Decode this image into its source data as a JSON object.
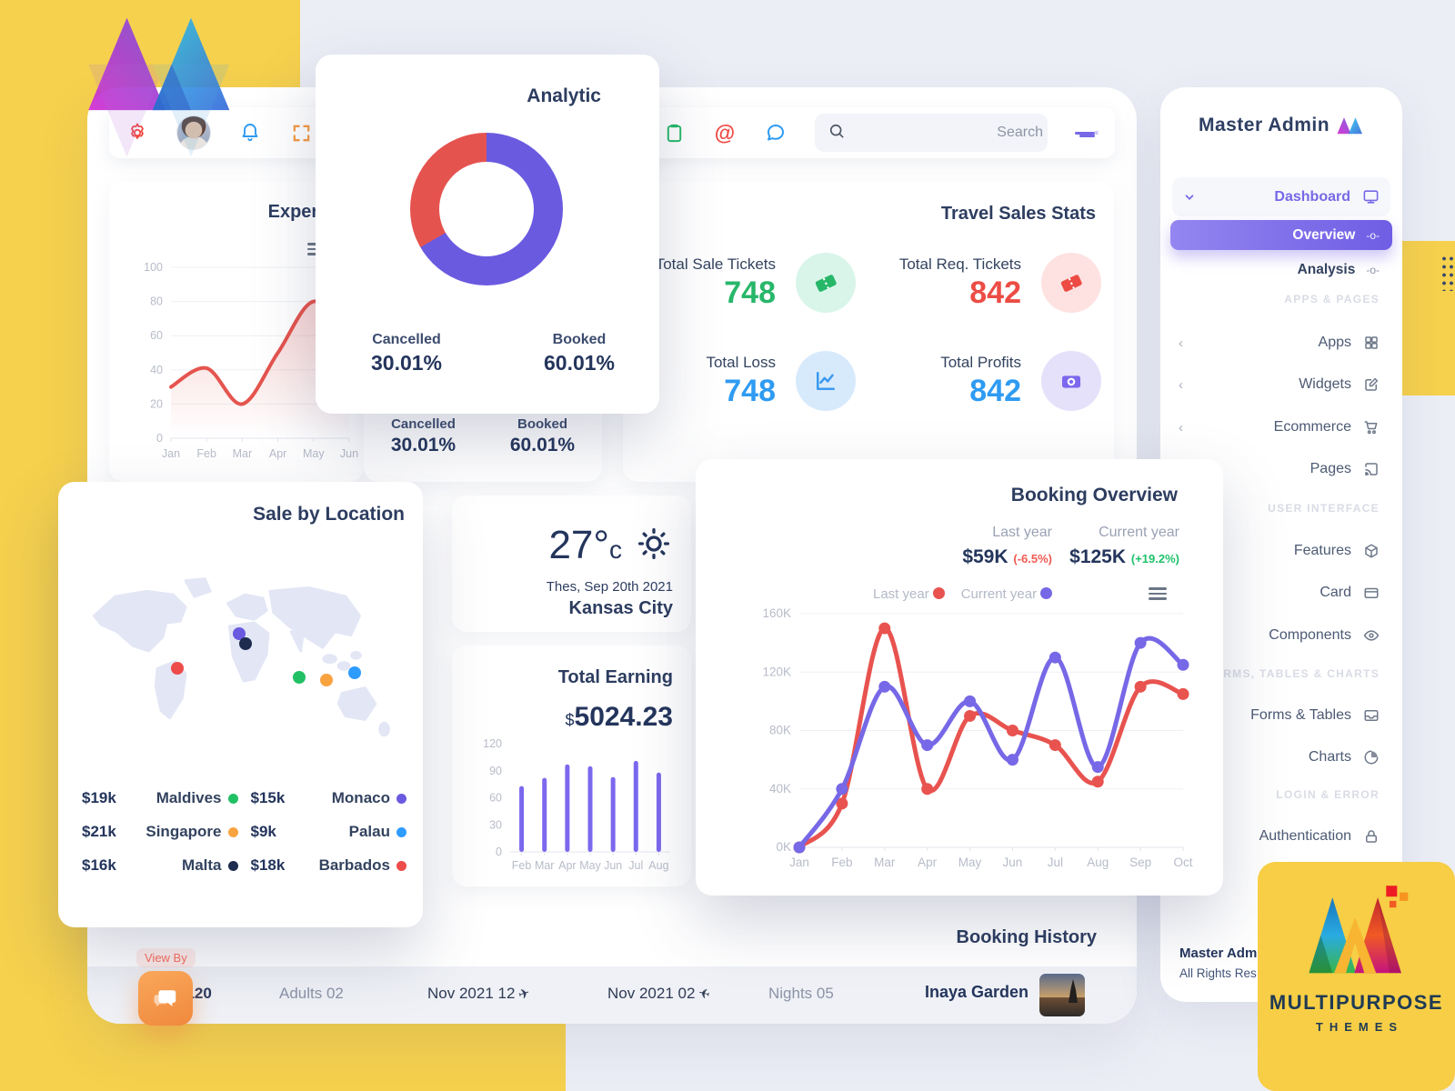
{
  "brand": {
    "name": "Master Admin"
  },
  "topbar": {
    "search_placeholder": "Search"
  },
  "analytic_card": {
    "title": "Analytic",
    "cancelled_label": "Cancelled",
    "cancelled_value": "30.01%",
    "booked_label": "Booked",
    "booked_value": "60.01%"
  },
  "expenses_card": {
    "title": "Expenses"
  },
  "travel_stats": {
    "title": "Travel Sales Stats",
    "items": [
      {
        "label": "Total Sale Tickets",
        "value": "748",
        "value_color": "#27b769",
        "badge_bg": "#d9f5ea",
        "icon": "ticket-icon",
        "icon_color": "#27b769"
      },
      {
        "label": "Total Req. Tickets",
        "value": "842",
        "value_color": "#ec4c44",
        "badge_bg": "#fde2e1",
        "icon": "ticket-icon",
        "icon_color": "#ec4c44"
      },
      {
        "label": "Total Loss",
        "value": "748",
        "value_color": "#2f9bf2",
        "badge_bg": "#d7eafc",
        "icon": "loss-chart-icon",
        "icon_color": "#3b99f0"
      },
      {
        "label": "Total Profits",
        "value": "842",
        "value_color": "#2f9bf2",
        "badge_bg": "#e5e1fa",
        "icon": "wallet-icon",
        "icon_color": "#7b68ee"
      }
    ]
  },
  "weather": {
    "temp": "27°",
    "unit": "c",
    "date": "Thes, Sep 20th 2021",
    "city": "Kansas City"
  },
  "earning": {
    "title": "Total Earning",
    "currency": "$",
    "amount": "5024.23"
  },
  "sale_by_location": {
    "title": "Sale by Location",
    "entries": [
      {
        "value": "$19k",
        "label": "Maldives",
        "color": "#22c065",
        "map_x": 68.6,
        "map_y": 56.6
      },
      {
        "value": "$15k",
        "label": "Monaco",
        "color": "#6a5ae0",
        "map_x": 49.7,
        "map_y": 34.6
      },
      {
        "value": "$21k",
        "label": "Singapore",
        "color": "#f8a340",
        "map_x": 77.4,
        "map_y": 57.6
      },
      {
        "value": "$9k",
        "label": "Palau",
        "color": "#2e9bff",
        "map_x": 86.3,
        "map_y": 54.1
      },
      {
        "value": "$16k",
        "label": "Malta",
        "color": "#1d2b4f",
        "map_x": 51.7,
        "map_y": 39.5
      },
      {
        "value": "$18k",
        "label": "Barbados",
        "color": "#ee4b4b",
        "map_x": 30.3,
        "map_y": 51.7
      }
    ]
  },
  "booking_overview": {
    "title": "Booking Overview",
    "last_year_label": "Last year",
    "last_year_value": "$59K",
    "last_year_delta": "(-6.5%)",
    "delta_down_color": "#f05a52",
    "current_year_label": "Current year",
    "current_year_value": "$125K",
    "current_year_delta": "(+19.2%)",
    "delta_up_color": "#1fc26b",
    "legend": [
      {
        "label": "Last year",
        "color": "#e8534f"
      },
      {
        "label": "Current year",
        "color": "#7668e6"
      }
    ]
  },
  "booking_history": {
    "title": "Booking History",
    "row": {
      "price": "$120",
      "adults": "Adults 02",
      "departure_date": "Nov 2021 12",
      "arrival_date": "Nov 2021 02",
      "nights": "Nights 05",
      "hotel": "Inaya Garden"
    }
  },
  "sidebar": {
    "brand": "Master Admin",
    "dashboard_label": "Dashboard",
    "overview_label": "Overview",
    "analysis_label": "Analysis",
    "radio_glyph": "-o-",
    "sections": {
      "apps_pages": "APPS & PAGES",
      "user_interface": "USER INTERFACE",
      "forms_tables_charts": "FORMS, TABLES & CHARTS",
      "login_error": "LOGIN & ERROR"
    },
    "items": {
      "apps": "Apps",
      "widgets": "Widgets",
      "ecommerce": "Ecommerce",
      "pages": "Pages",
      "features": "Features",
      "card": "Card",
      "components": "Components",
      "forms_tables": "Forms & Tables",
      "charts": "Charts",
      "authentication": "Authentication"
    },
    "footer_title": "Master Admin",
    "footer_sub": "All Rights Res"
  },
  "view_by": "View By",
  "logo_card": {
    "line1": "MULTIPURPOSE",
    "line2": "THEMES"
  },
  "chart_data": [
    {
      "id": "expenses",
      "type": "line",
      "title": "Expenses",
      "x": [
        "Jan",
        "Feb",
        "Mar",
        "Apr",
        "May",
        "Jun"
      ],
      "series": [
        {
          "name": "Expenses",
          "color": "#e5544e",
          "values": [
            30,
            41,
            20,
            50,
            80,
            60
          ]
        }
      ],
      "ylim": [
        0,
        100
      ],
      "yticks": [
        0,
        20,
        40,
        60,
        80,
        100
      ],
      "grid": true,
      "area": true,
      "legend_position": "none"
    },
    {
      "id": "analytic-donut",
      "type": "pie",
      "title": "Analytic",
      "labels": [
        "Cancelled",
        "Booked"
      ],
      "values": [
        30.01,
        60.01
      ],
      "colors": [
        "#e5534f",
        "#6a5ae0"
      ]
    },
    {
      "id": "earning",
      "type": "bar",
      "title": "Total Earning",
      "categories": [
        "Feb",
        "Mar",
        "Apr",
        "May",
        "Jun",
        "Jul",
        "Aug"
      ],
      "values": [
        73,
        82,
        97,
        95,
        83,
        101,
        88
      ],
      "color": "#7b68ee",
      "ylim": [
        0,
        120
      ],
      "yticks": [
        0,
        30,
        60,
        90,
        120
      ],
      "grid": false
    },
    {
      "id": "booking",
      "type": "line",
      "title": "Booking Overview",
      "x": [
        "Jan",
        "Feb",
        "Mar",
        "Apr",
        "May",
        "Jun",
        "Jul",
        "Aug",
        "Sep",
        "Oct"
      ],
      "series": [
        {
          "name": "Last year",
          "color": "#e8534f",
          "values": [
            0,
            30,
            150,
            40,
            90,
            80,
            70,
            45,
            110,
            105
          ]
        },
        {
          "name": "Current year",
          "color": "#7668e6",
          "values": [
            0,
            40,
            110,
            70,
            100,
            60,
            130,
            55,
            140,
            125
          ]
        }
      ],
      "ylim": [
        0,
        160
      ],
      "yticks": [
        0,
        40,
        80,
        120,
        160
      ],
      "ytick_suffix": "K",
      "grid": true,
      "markers": true,
      "legend_position": "top"
    }
  ]
}
